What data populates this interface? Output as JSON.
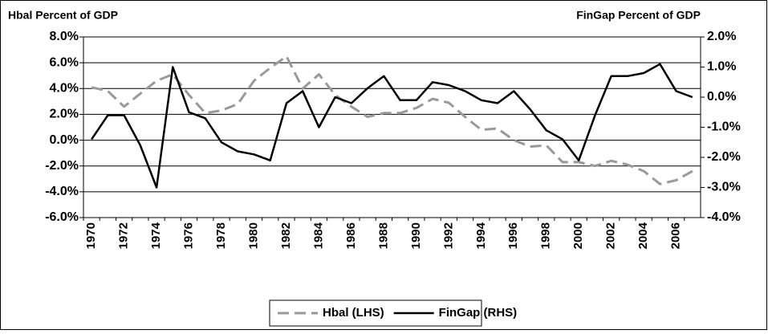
{
  "chart_data": {
    "type": "line",
    "title_left": "Hbal Percent of GDP",
    "title_right": "FinGap Percent of GDP",
    "categories": [
      "1970",
      null,
      "1972",
      null,
      "1974",
      null,
      "1976",
      null,
      "1978",
      null,
      "1980",
      null,
      "1982",
      null,
      "1984",
      null,
      "1986",
      null,
      "1988",
      null,
      "1990",
      null,
      "1992",
      null,
      "1994",
      null,
      "1996",
      null,
      "1998",
      null,
      "2000",
      null,
      "2002",
      null,
      "2004",
      null,
      "2006",
      null
    ],
    "series": [
      {
        "name": "Hbal (LHS)",
        "color": "#999999",
        "dashed": true,
        "axis": "y",
        "values": [
          4.1,
          3.8,
          2.6,
          3.6,
          4.6,
          5.1,
          3.5,
          2.1,
          2.3,
          2.8,
          4.6,
          5.6,
          6.5,
          4.0,
          5.1,
          3.5,
          2.6,
          1.8,
          2.1,
          2.1,
          2.5,
          3.2,
          2.9,
          1.8,
          0.8,
          0.9,
          0.0,
          -0.5,
          -0.4,
          -1.7,
          -1.7,
          -2.0,
          -1.6,
          -1.9,
          -2.4,
          -3.4,
          -3.1,
          -2.4
        ]
      },
      {
        "name": "FinGap (RHS)",
        "color": "#000000",
        "dashed": false,
        "axis": "y2",
        "values": [
          -1.4,
          -0.6,
          -0.6,
          -1.6,
          -3.0,
          1.0,
          -0.5,
          -0.7,
          -1.5,
          -1.8,
          -1.9,
          -2.1,
          -0.2,
          0.2,
          -1.0,
          0.0,
          -0.2,
          0.3,
          0.7,
          -0.1,
          -0.1,
          0.5,
          0.4,
          0.2,
          -0.1,
          -0.2,
          0.2,
          -0.4,
          -1.1,
          -1.4,
          -2.1,
          -0.6,
          0.7,
          0.7,
          0.8,
          1.1,
          0.2,
          0.0
        ]
      }
    ],
    "ylim": [
      -6,
      8
    ],
    "yticks": [
      {
        "value": -6,
        "label": "-6.0%"
      },
      {
        "value": -4,
        "label": "-4.0%"
      },
      {
        "value": -2,
        "label": "-2.0%"
      },
      {
        "value": 0,
        "label": "0.0%"
      },
      {
        "value": 2,
        "label": "2.0%"
      },
      {
        "value": 4,
        "label": "4.0%"
      },
      {
        "value": 6,
        "label": "6.0%"
      },
      {
        "value": 8,
        "label": "8.0%"
      }
    ],
    "y2lim": [
      -4,
      2
    ],
    "y2ticks": [
      {
        "value": -4,
        "label": "-4.0%"
      },
      {
        "value": -3,
        "label": "-3.0%"
      },
      {
        "value": -2,
        "label": "-2.0%"
      },
      {
        "value": -1,
        "label": "-1.0%"
      },
      {
        "value": 0,
        "label": "0.0%"
      },
      {
        "value": 1,
        "label": "1.0%"
      },
      {
        "value": 2,
        "label": "2.0%"
      }
    ],
    "grid": true,
    "legend": "bottom"
  }
}
